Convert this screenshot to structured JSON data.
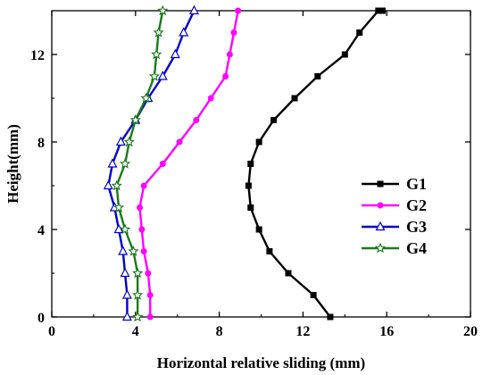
{
  "chart_data": {
    "type": "line",
    "title": "",
    "xlabel": "Horizontal relative sliding (mm)",
    "ylabel": "Height(mm)",
    "xlim": [
      0,
      20
    ],
    "ylim": [
      0,
      14
    ],
    "xticks": [
      0,
      4,
      8,
      12,
      16,
      20
    ],
    "yticks": [
      0,
      4,
      8,
      12
    ],
    "grid": false,
    "legend_position": "center-right",
    "series": [
      {
        "name": "G1",
        "color": "#000000",
        "marker": "square",
        "x": [
          13.3,
          12.5,
          11.3,
          10.4,
          9.9,
          9.5,
          9.4,
          9.5,
          9.9,
          10.6,
          11.6,
          12.7,
          14.0,
          14.7,
          15.6,
          15.8
        ],
        "y": [
          0,
          1,
          2,
          3,
          4,
          5,
          6,
          7,
          8,
          9,
          10,
          11,
          12,
          13,
          14,
          14
        ]
      },
      {
        "name": "G2",
        "color": "#ff00ff",
        "marker": "circle",
        "x": [
          4.7,
          4.7,
          4.6,
          4.4,
          4.3,
          4.2,
          4.4,
          5.3,
          6.1,
          6.9,
          7.6,
          8.3,
          8.5,
          8.7,
          8.9
        ],
        "y": [
          0,
          1,
          2,
          3,
          4,
          5,
          6,
          7,
          8,
          9,
          10,
          11,
          12,
          13,
          14
        ]
      },
      {
        "name": "G3",
        "color": "#0000cc",
        "marker": "triangle",
        "x": [
          3.6,
          3.6,
          3.5,
          3.4,
          3.2,
          3.0,
          2.7,
          2.9,
          3.3,
          4.0,
          4.6,
          5.3,
          5.9,
          6.3,
          6.8
        ],
        "y": [
          0,
          1,
          2,
          3,
          4,
          5,
          6,
          7,
          8,
          9,
          10,
          11,
          12,
          13,
          14
        ]
      },
      {
        "name": "G4",
        "color": "#1a7a1a",
        "marker": "star",
        "x": [
          4.1,
          4.1,
          4.1,
          3.9,
          3.5,
          3.2,
          3.1,
          3.5,
          3.7,
          4.0,
          4.5,
          4.9,
          5.0,
          5.1,
          5.3
        ],
        "y": [
          0,
          1,
          2,
          3,
          4,
          5,
          6,
          7,
          8,
          9,
          10,
          11,
          12,
          13,
          14
        ]
      }
    ]
  }
}
